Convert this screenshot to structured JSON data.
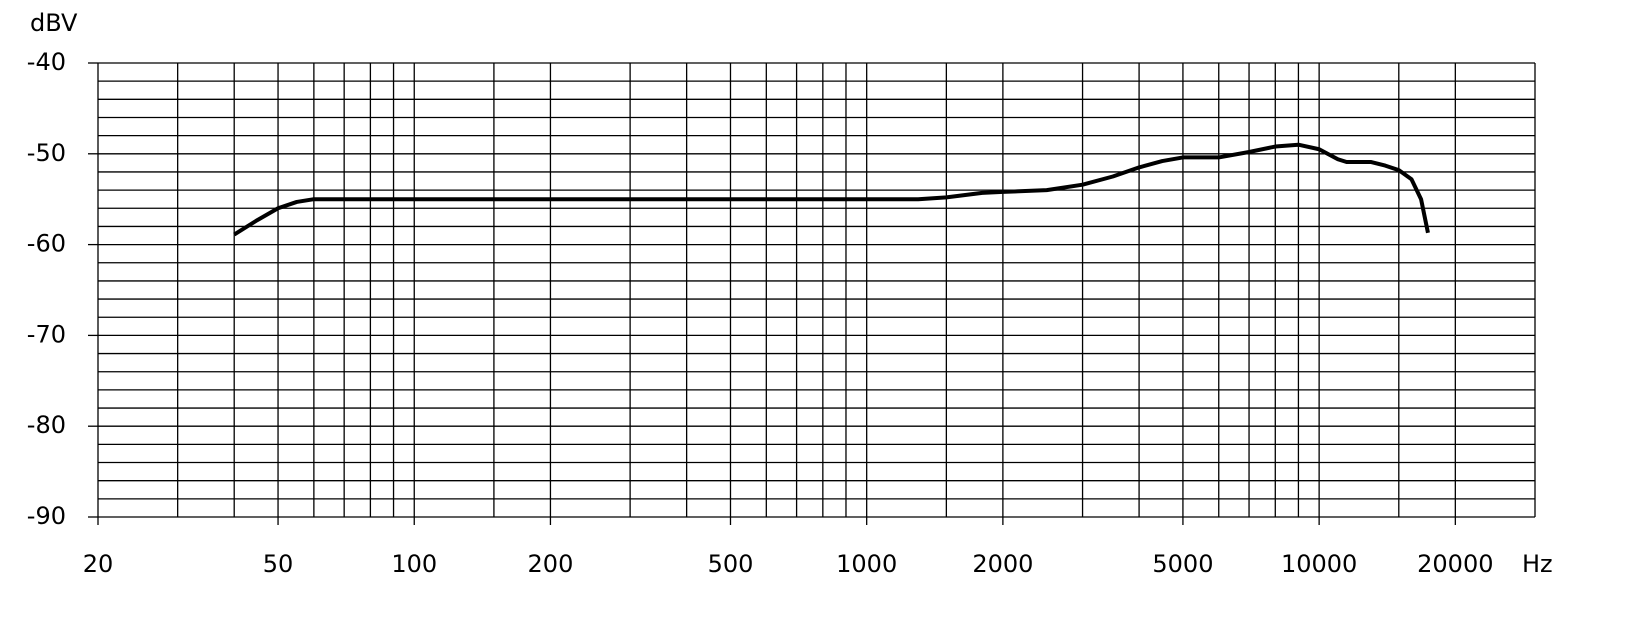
{
  "chart_data": {
    "type": "line",
    "y_axis_label": "dBV",
    "x_axis_label": "Hz",
    "xscale": "log",
    "xlim": [
      20,
      30000
    ],
    "ylim": [
      -90,
      -40
    ],
    "xticks": [
      20,
      50,
      100,
      200,
      500,
      1000,
      2000,
      5000,
      10000,
      20000
    ],
    "yticks": [
      -90,
      -80,
      -70,
      -60,
      -50,
      -40
    ],
    "x_gridlines": [
      20,
      30,
      40,
      50,
      60,
      70,
      80,
      90,
      100,
      150,
      200,
      300,
      400,
      500,
      600,
      700,
      800,
      900,
      1000,
      1500,
      2000,
      3000,
      4000,
      5000,
      6000,
      7000,
      8000,
      9000,
      10000,
      15000,
      20000,
      30000
    ],
    "y_gridlines": [
      -90,
      -88,
      -86,
      -84,
      -82,
      -80,
      -78,
      -76,
      -74,
      -72,
      -70,
      -68,
      -66,
      -64,
      -62,
      -60,
      -58,
      -56,
      -54,
      -52,
      -50,
      -48,
      -46,
      -44,
      -42,
      -40
    ],
    "series": [
      {
        "color": "#000000",
        "x": [
          40,
          45,
          50,
          55,
          60,
          100,
          500,
          1000,
          1300,
          1500,
          1800,
          2000,
          2500,
          3000,
          3500,
          4000,
          4500,
          5000,
          6000,
          7000,
          8000,
          9000,
          10000,
          11000,
          11500,
          13000,
          14000,
          15000,
          16000,
          16800,
          17400
        ],
        "values": [
          -58.9,
          -57.3,
          -56,
          -55.3,
          -55,
          -55,
          -55,
          -55,
          -55,
          -54.8,
          -54.3,
          -54.2,
          -54,
          -53.4,
          -52.5,
          -51.5,
          -50.8,
          -50.4,
          -50.4,
          -49.8,
          -49.2,
          -49,
          -49.5,
          -50.6,
          -50.9,
          -50.9,
          -51.3,
          -51.8,
          -52.8,
          -55,
          -58.7
        ]
      }
    ]
  }
}
